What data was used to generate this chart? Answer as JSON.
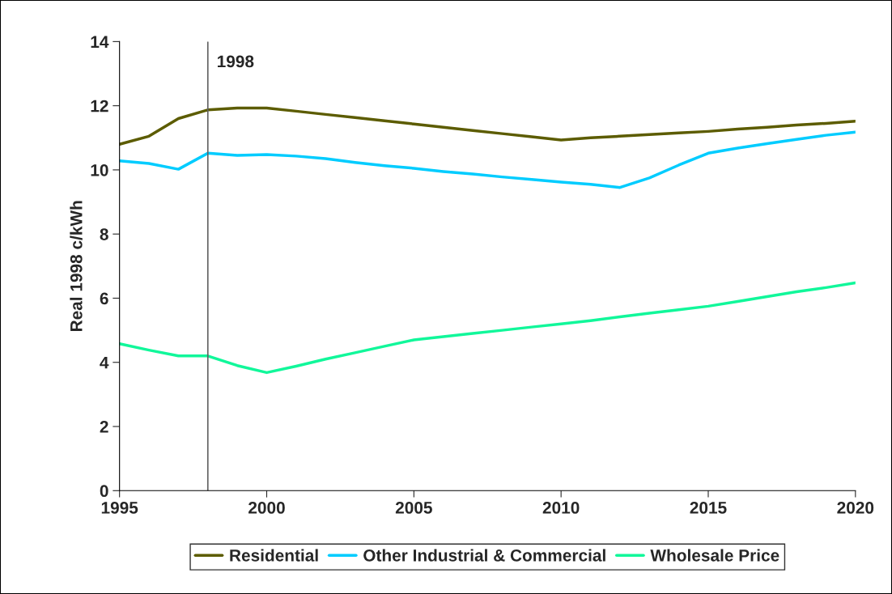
{
  "chart_data": {
    "type": "line",
    "ylabel": "Real 1998 c/kWh",
    "x": [
      1995,
      1996,
      1997,
      1998,
      1999,
      2000,
      2001,
      2002,
      2003,
      2004,
      2005,
      2006,
      2007,
      2008,
      2009,
      2010,
      2011,
      2012,
      2013,
      2014,
      2015,
      2016,
      2017,
      2018,
      2019,
      2020
    ],
    "series": [
      {
        "name": "Residential",
        "color": "#5c5c00",
        "values": [
          10.8,
          11.05,
          11.6,
          11.87,
          11.93,
          11.93,
          11.83,
          11.73,
          11.63,
          11.53,
          11.43,
          11.33,
          11.23,
          11.13,
          11.03,
          10.93,
          11.0,
          11.05,
          11.1,
          11.15,
          11.2,
          11.27,
          11.33,
          11.4,
          11.45,
          11.52
        ]
      },
      {
        "name": "Other Industrial & Commercial",
        "color": "#00ccff",
        "values": [
          10.28,
          10.2,
          10.02,
          10.52,
          10.45,
          10.48,
          10.43,
          10.35,
          10.23,
          10.13,
          10.05,
          9.95,
          9.87,
          9.78,
          9.7,
          9.62,
          9.55,
          9.45,
          9.75,
          10.15,
          10.52,
          10.68,
          10.82,
          10.95,
          11.08,
          11.18
        ]
      },
      {
        "name": "Wholesale Price",
        "color": "#11f79a",
        "values": [
          4.58,
          4.38,
          4.2,
          4.2,
          3.9,
          3.68,
          3.88,
          4.1,
          4.3,
          4.5,
          4.7,
          4.8,
          4.9,
          5.0,
          5.1,
          5.2,
          5.3,
          5.42,
          5.53,
          5.64,
          5.75,
          5.9,
          6.05,
          6.2,
          6.33,
          6.48
        ]
      }
    ],
    "xlim": [
      1995,
      2020
    ],
    "xticks": [
      1995,
      2000,
      2005,
      2010,
      2015,
      2020
    ],
    "ylim": [
      0,
      14
    ],
    "yticks": [
      0,
      2,
      4,
      6,
      8,
      10,
      12,
      14
    ],
    "ref_lines": [
      {
        "axis": "x",
        "value": 1998,
        "label": "1998",
        "color": "#606060"
      }
    ],
    "grid": false,
    "legend": "bottom",
    "line_style": "solid"
  }
}
